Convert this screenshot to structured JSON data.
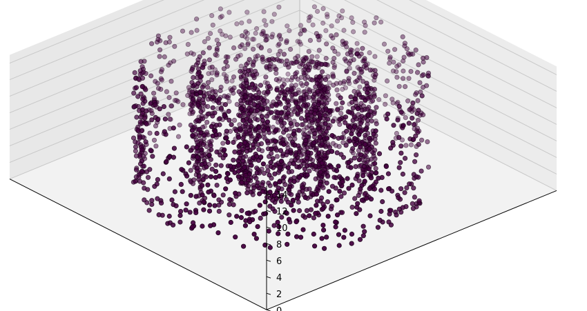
{
  "chart_data": {
    "type": "scatter",
    "projection": "3d",
    "title": "",
    "xlabel": "",
    "ylabel": "",
    "zlabel": "",
    "xlim": [
      -12,
      12
    ],
    "ylim": [
      -12,
      12
    ],
    "zlim": [
      0,
      15
    ],
    "z_ticks": [
      0,
      2,
      4,
      6,
      8,
      10,
      12,
      14
    ],
    "x_ticks": [],
    "y_ticks": [],
    "grid": true,
    "marker": "circle",
    "marker_color": "#44003f",
    "marker_edge_color": "#1a0018",
    "pane_color": "#f2f2f2",
    "series": [
      {
        "shape": "cylinder",
        "radius": 2.5,
        "z_range": [
          0,
          14
        ],
        "points": 700
      },
      {
        "shape": "cylinder",
        "radius": 5.5,
        "z_range": [
          0,
          14
        ],
        "points": 900
      },
      {
        "shape": "cylinder",
        "radius": 9.0,
        "z_range": [
          0,
          14
        ],
        "points": 900,
        "angular_gap": true
      }
    ]
  }
}
